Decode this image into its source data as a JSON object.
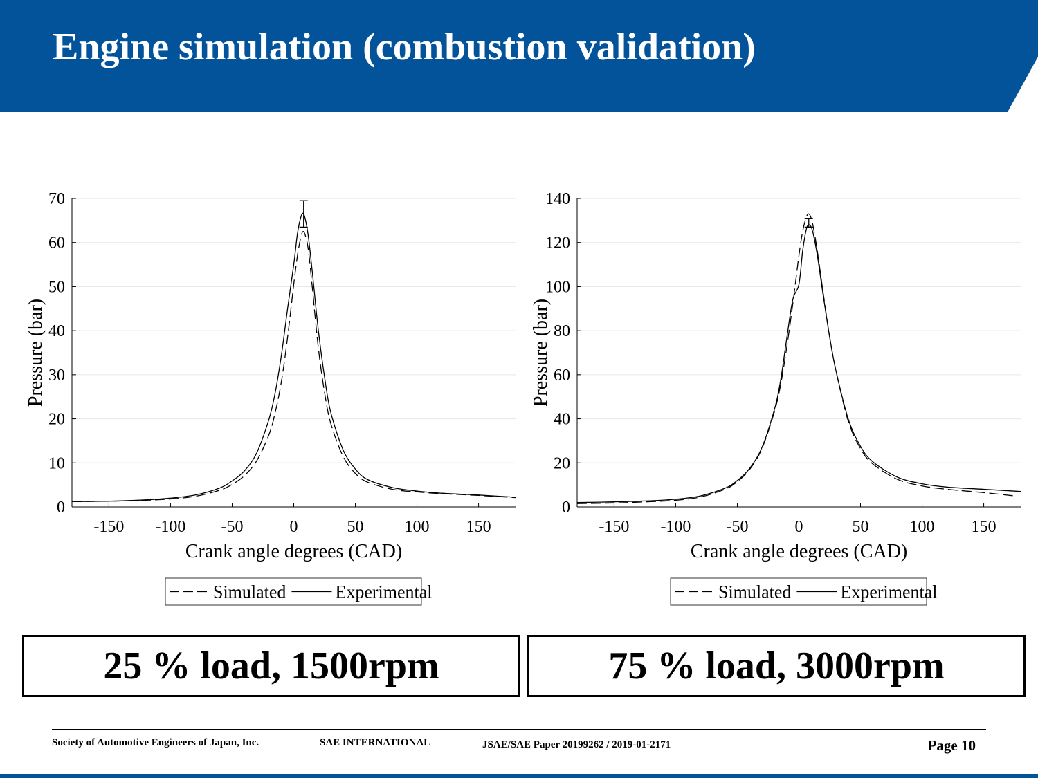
{
  "title": "Engine simulation (combustion validation)",
  "colors": {
    "header": "#03539a",
    "grid": "#e6e6e6",
    "line": "#000000"
  },
  "chart_data": [
    {
      "type": "line",
      "title": "",
      "xlabel": "Crank angle degrees (CAD)",
      "ylabel": "Pressure (bar)",
      "xlim": [
        -180,
        180
      ],
      "ylim": [
        0,
        70
      ],
      "xticks": [
        -150,
        -100,
        -50,
        0,
        50,
        100,
        150
      ],
      "yticks": [
        0,
        10,
        20,
        30,
        40,
        50,
        60,
        70
      ],
      "grid": "horizontal",
      "legend": {
        "position": "bottom-center",
        "orientation": "horizontal"
      },
      "series": [
        {
          "name": "Simulated",
          "style": "dashed",
          "x": [
            -180,
            -150,
            -120,
            -100,
            -80,
            -60,
            -50,
            -40,
            -30,
            -20,
            -15,
            -10,
            -5,
            0,
            3,
            6,
            8,
            10,
            12,
            15,
            20,
            25,
            30,
            40,
            50,
            60,
            80,
            100,
            120,
            150,
            180
          ],
          "y": [
            1.2,
            1.3,
            1.5,
            1.8,
            2.4,
            3.8,
            5.1,
            7.1,
            10.5,
            16.5,
            21.5,
            28.5,
            38.5,
            50.5,
            57.0,
            61.5,
            62.5,
            61.0,
            58.0,
            50.0,
            36.0,
            26.0,
            19.0,
            11.5,
            7.6,
            5.6,
            4.0,
            3.4,
            3.0,
            2.6,
            2.1
          ]
        },
        {
          "name": "Experimental",
          "style": "solid",
          "x": [
            -180,
            -150,
            -120,
            -100,
            -80,
            -60,
            -50,
            -40,
            -30,
            -20,
            -15,
            -10,
            -5,
            0,
            3,
            6,
            8,
            10,
            12,
            15,
            20,
            25,
            30,
            40,
            50,
            60,
            80,
            100,
            120,
            150,
            180
          ],
          "y": [
            1.2,
            1.3,
            1.6,
            2.0,
            2.7,
            4.3,
            5.9,
            8.2,
            12.3,
            20.0,
            26.0,
            34.5,
            45.0,
            55.0,
            62.0,
            66.0,
            66.5,
            64.5,
            61.0,
            53.5,
            40.0,
            29.5,
            21.5,
            13.0,
            8.6,
            6.2,
            4.4,
            3.6,
            3.1,
            2.7,
            2.2
          ]
        }
      ],
      "errorbar": {
        "x": 8,
        "y_low": 63.5,
        "y_high": 69.5
      }
    },
    {
      "type": "line",
      "title": "",
      "xlabel": "Crank angle degrees (CAD)",
      "ylabel": "Pressure (bar)",
      "xlim": [
        -180,
        180
      ],
      "ylim": [
        0,
        140
      ],
      "xticks": [
        -150,
        -100,
        -50,
        0,
        50,
        100,
        150
      ],
      "yticks": [
        0,
        20,
        40,
        60,
        80,
        100,
        120,
        140
      ],
      "grid": "horizontal",
      "legend": {
        "position": "bottom-center",
        "orientation": "horizontal"
      },
      "series": [
        {
          "name": "Simulated",
          "style": "dashed",
          "x": [
            -180,
            -150,
            -120,
            -100,
            -80,
            -60,
            -50,
            -40,
            -30,
            -20,
            -15,
            -10,
            -5,
            0,
            3,
            6,
            8,
            10,
            12,
            15,
            20,
            25,
            30,
            40,
            50,
            60,
            80,
            100,
            120,
            150,
            175
          ],
          "y": [
            1.5,
            1.8,
            2.4,
            3.0,
            4.5,
            8.0,
            11.5,
            17.0,
            26.5,
            43.0,
            55.0,
            72.0,
            92.0,
            114.0,
            125.0,
            131.5,
            133.0,
            131.0,
            126.0,
            116.0,
            96.0,
            77.0,
            62.0,
            39.0,
            26.5,
            19.5,
            12.5,
            9.5,
            8.0,
            6.5,
            5.0
          ]
        },
        {
          "name": "Experimental",
          "style": "solid",
          "x": [
            -180,
            -150,
            -120,
            -100,
            -80,
            -60,
            -50,
            -40,
            -30,
            -20,
            -15,
            -10,
            -5,
            0,
            3,
            6,
            8,
            10,
            12,
            15,
            20,
            25,
            30,
            40,
            50,
            60,
            80,
            100,
            120,
            150,
            180
          ],
          "y": [
            2.0,
            2.3,
            2.8,
            3.5,
            5.0,
            8.5,
            12.0,
            17.5,
            27.0,
            44.0,
            57.0,
            76.0,
            94.0,
            101.0,
            116.0,
            126.0,
            128.0,
            127.0,
            123.0,
            114.0,
            95.0,
            77.0,
            62.0,
            40.0,
            27.5,
            20.5,
            13.5,
            10.5,
            9.0,
            8.0,
            7.0
          ]
        }
      ],
      "errorbar": {
        "x": 8,
        "y_low": 127.0,
        "y_high": 131.0
      }
    }
  ],
  "captions": [
    "25 % load, 1500rpm",
    "75 % load, 3000rpm"
  ],
  "footer": {
    "org": "Society of Automotive Engineers of Japan, Inc.",
    "sae": "SAE INTERNATIONAL",
    "paper": "JSAE/SAE  Paper 20199262 / 2019-01-2171",
    "page": "Page 10"
  }
}
